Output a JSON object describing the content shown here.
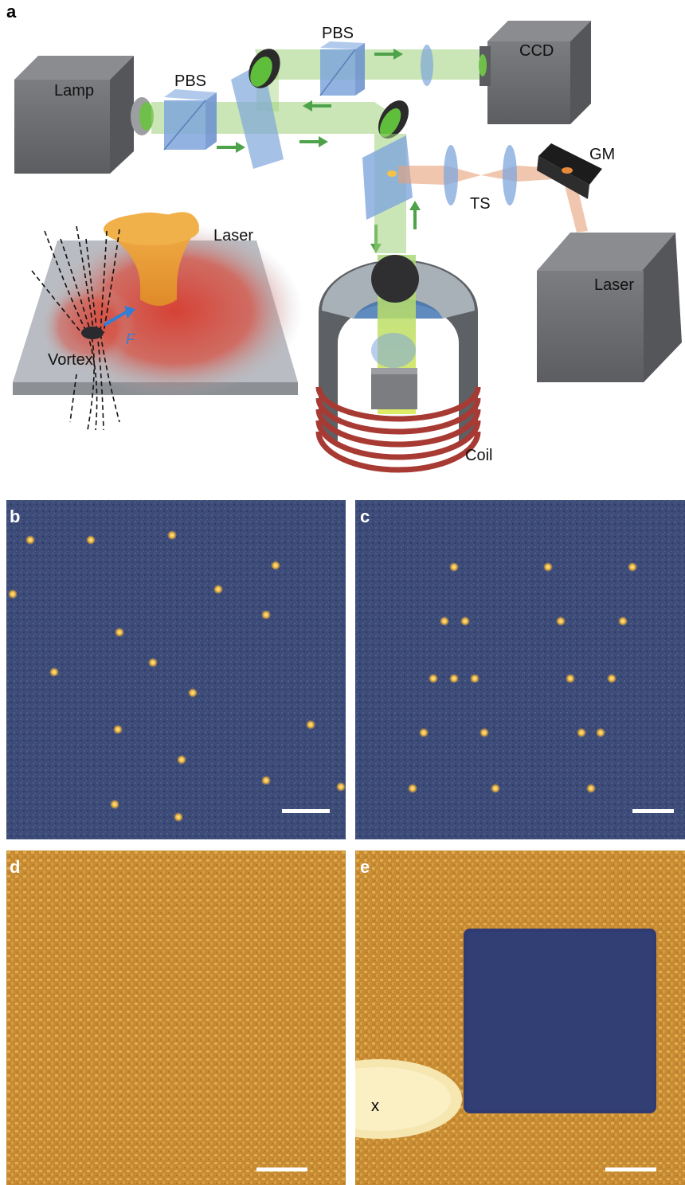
{
  "figure": {
    "panels": {
      "a": {
        "letter": "a",
        "labels": {
          "lamp": "Lamp",
          "pbs_left": "PBS",
          "pbs_top": "PBS",
          "ccd": "CCD",
          "gm": "GM",
          "ts": "TS",
          "laser_right": "Laser",
          "laser_inset": "Laser",
          "vortex": "Vortex",
          "force": "F",
          "coil": "Coil"
        }
      },
      "b": {
        "letter": "b"
      },
      "c": {
        "letter": "c"
      },
      "d": {
        "letter": "d"
      },
      "e": {
        "letter": "e",
        "marker": "x"
      }
    },
    "colors": {
      "beam_green": "#9fd27a",
      "beam_orange": "#e8a07a",
      "arrow_green": "#4ea34a",
      "box_gray": "#6d6f71",
      "glass_blue": "#7fa6dc",
      "coil_red": "#a83a34",
      "mo_blue_bg": "#3b4a78",
      "mo_gold_bg": "#c68a33",
      "vortex_dot": "#f2b43a"
    }
  }
}
